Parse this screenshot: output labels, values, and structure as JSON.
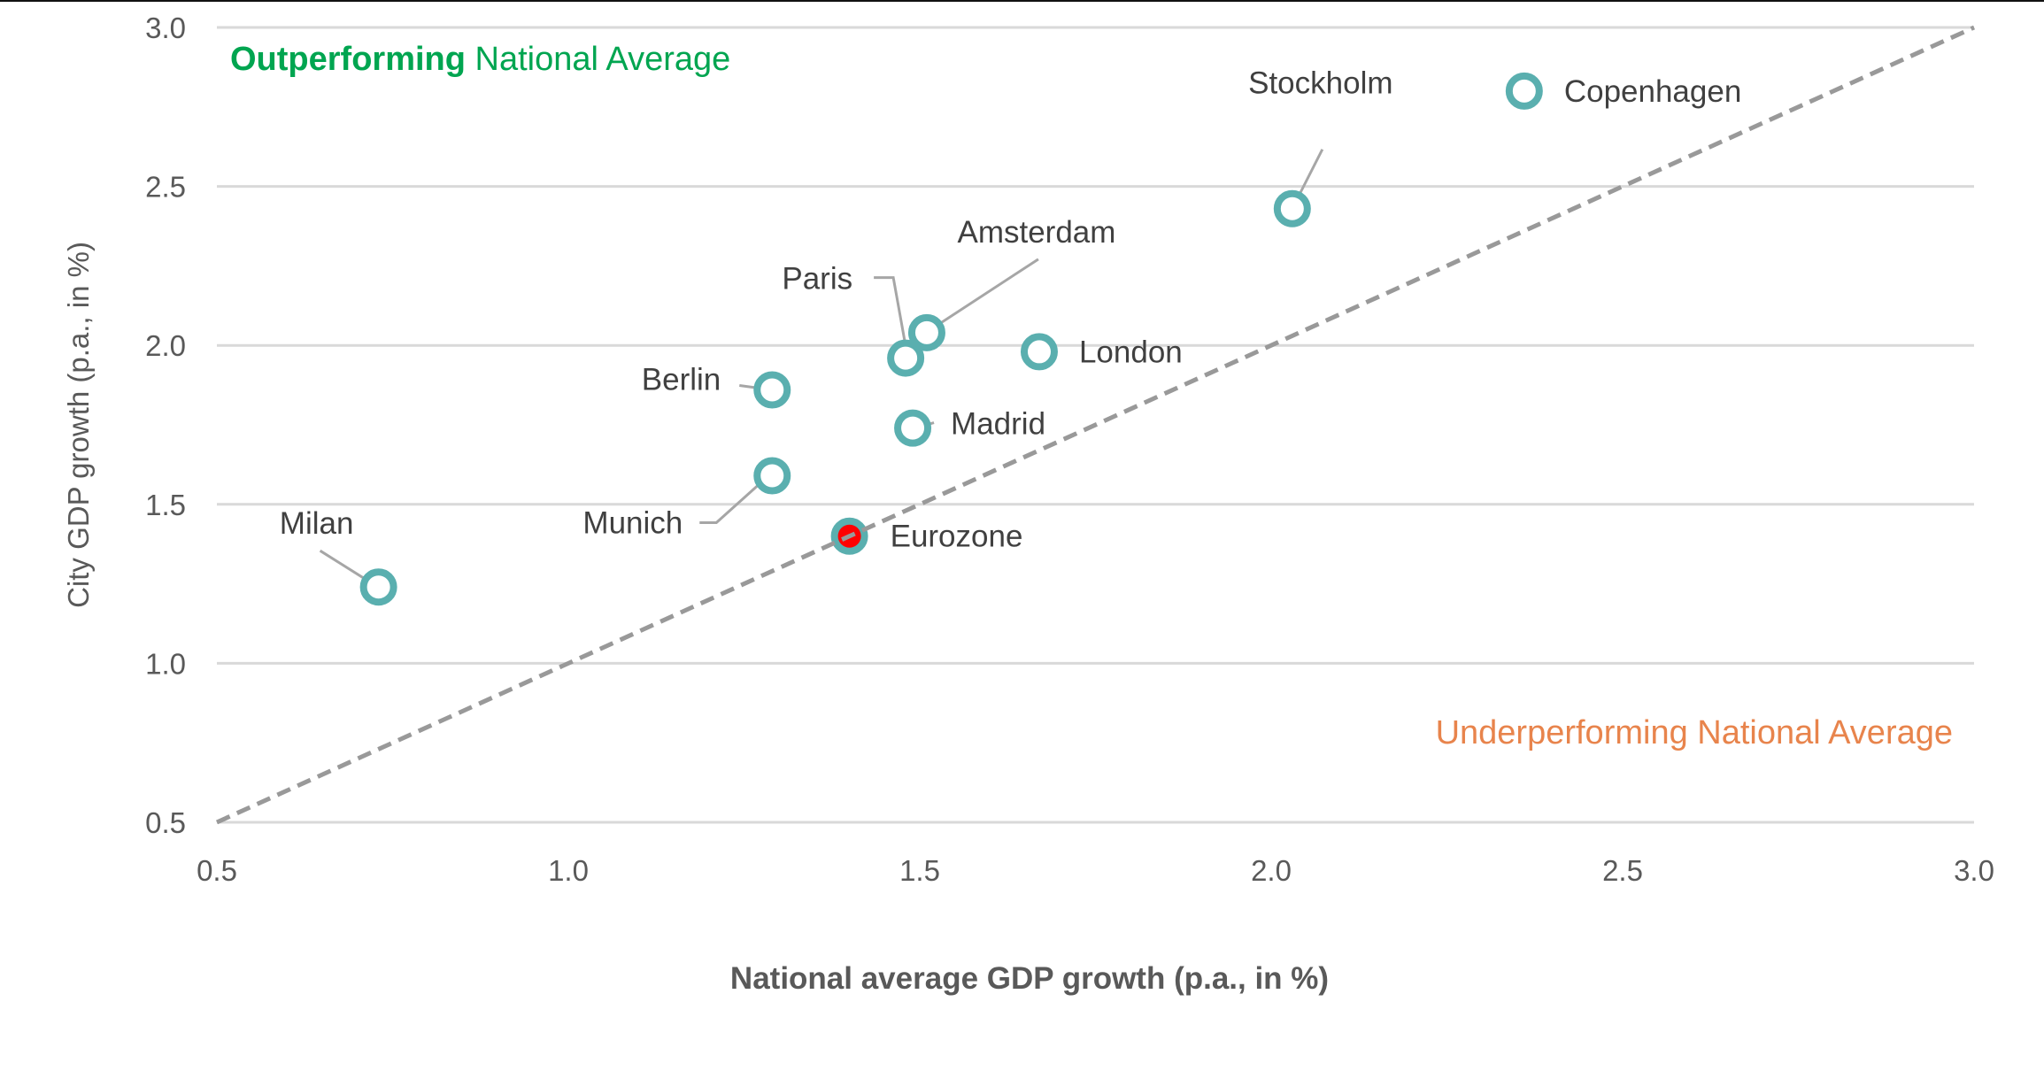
{
  "chart_data": {
    "type": "scatter",
    "title": "",
    "xlabel": "National average GDP growth (p.a., in %)",
    "ylabel": "City GDP growth (p.a., in %)",
    "xlim": [
      0.5,
      3.0
    ],
    "ylim": [
      0.5,
      3.0
    ],
    "xticks": [
      "0.5",
      "1.0",
      "1.5",
      "2.0",
      "2.5",
      "3.0"
    ],
    "yticks": [
      "0.5",
      "1.0",
      "1.5",
      "2.0",
      "2.5",
      "3.0"
    ],
    "grid": "horizontal",
    "reference_line": {
      "type": "y=x",
      "style": "dashed",
      "color": "#999999"
    },
    "annotations": {
      "outperforming_bold": "Outperforming",
      "outperforming_rest": " National Average",
      "underperforming": "Underperforming National Average"
    },
    "colors": {
      "marker": "#5aafaf",
      "highlight_fill": "#ff0000",
      "outperforming": "#00a550",
      "underperforming": "#e8844c"
    },
    "points": [
      {
        "name": "Copenhagen",
        "x": 2.36,
        "y": 2.8,
        "highlight": false
      },
      {
        "name": "Stockholm",
        "x": 2.03,
        "y": 2.43,
        "highlight": false
      },
      {
        "name": "Amsterdam",
        "x": 1.51,
        "y": 2.04,
        "highlight": false
      },
      {
        "name": "Paris",
        "x": 1.48,
        "y": 1.96,
        "highlight": false
      },
      {
        "name": "London",
        "x": 1.67,
        "y": 1.98,
        "highlight": false
      },
      {
        "name": "Berlin",
        "x": 1.29,
        "y": 1.86,
        "highlight": false
      },
      {
        "name": "Madrid",
        "x": 1.49,
        "y": 1.74,
        "highlight": false
      },
      {
        "name": "Munich",
        "x": 1.29,
        "y": 1.59,
        "highlight": false
      },
      {
        "name": "Milan",
        "x": 0.73,
        "y": 1.24,
        "highlight": false
      },
      {
        "name": "Eurozone",
        "x": 1.4,
        "y": 1.4,
        "highlight": true
      }
    ]
  }
}
